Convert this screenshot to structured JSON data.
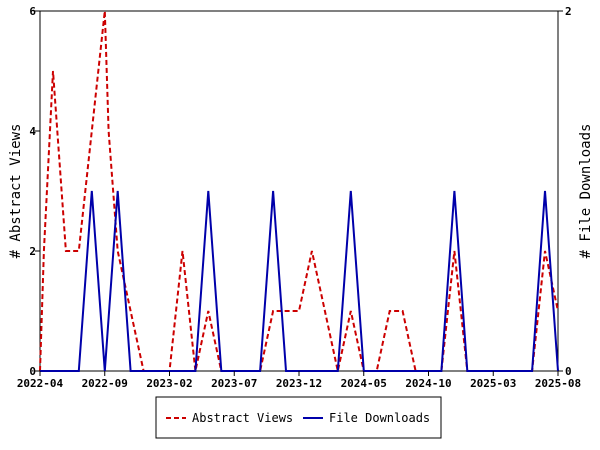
{
  "chart_data": {
    "type": "line",
    "title": "",
    "x_tick_labels": [
      "2022-04",
      "2022-09",
      "2023-02",
      "2023-07",
      "2023-12",
      "2024-05",
      "2024-10",
      "2025-03",
      "2025-08"
    ],
    "x_range_months": [
      0,
      40
    ],
    "y_left": {
      "label": "# Abstract Views",
      "range": [
        0,
        6
      ],
      "ticks": [
        "0",
        "2",
        "4",
        "6"
      ]
    },
    "y_right": {
      "label": "# File Downloads",
      "range": [
        0,
        2
      ],
      "ticks": [
        "0",
        "2"
      ]
    },
    "grid": false,
    "legend_position": "bottom",
    "series": [
      {
        "name": "Abstract Views",
        "axis": "left",
        "color": "#cc0000",
        "style": "dashed",
        "x": [
          0,
          0.3,
          1,
          2,
          3,
          4,
          5,
          5.3,
          6,
          7,
          8,
          9,
          10,
          11,
          12,
          13,
          14,
          15,
          16,
          17,
          18,
          19,
          20,
          21,
          22,
          23,
          24,
          25,
          26,
          27,
          28,
          29,
          30,
          31,
          32,
          33,
          34,
          35,
          36,
          37,
          38,
          39,
          40
        ],
        "values": [
          0,
          2,
          5,
          2,
          2,
          4,
          6,
          4,
          2,
          1,
          0,
          0,
          0,
          2,
          0,
          1,
          0,
          0,
          0,
          0,
          1,
          1,
          1,
          2,
          1,
          0,
          1,
          0,
          0,
          1,
          1,
          0,
          0,
          0,
          2,
          0,
          0,
          0,
          0,
          0,
          0,
          2,
          1
        ]
      },
      {
        "name": "File Downloads",
        "axis": "right",
        "color": "#0000aa",
        "style": "solid",
        "x": [
          0,
          1,
          2,
          3,
          4,
          5,
          6,
          7,
          8,
          9,
          10,
          11,
          12,
          13,
          14,
          15,
          16,
          17,
          18,
          19,
          20,
          21,
          22,
          23,
          24,
          25,
          26,
          27,
          28,
          29,
          30,
          31,
          32,
          33,
          34,
          35,
          36,
          37,
          38,
          39,
          40
        ],
        "values": [
          0,
          0,
          0,
          0,
          1,
          0,
          1,
          0,
          0,
          0,
          0,
          0,
          0,
          1,
          0,
          0,
          0,
          0,
          1,
          0,
          0,
          0,
          0,
          0,
          1,
          0,
          0,
          0,
          0,
          0,
          0,
          0,
          1,
          0,
          0,
          0,
          0,
          0,
          0,
          1,
          0
        ]
      }
    ]
  },
  "legend": {
    "items": [
      {
        "label": "Abstract Views",
        "color": "#cc0000",
        "style": "dashed"
      },
      {
        "label": "File Downloads",
        "color": "#0000aa",
        "style": "solid"
      }
    ]
  }
}
